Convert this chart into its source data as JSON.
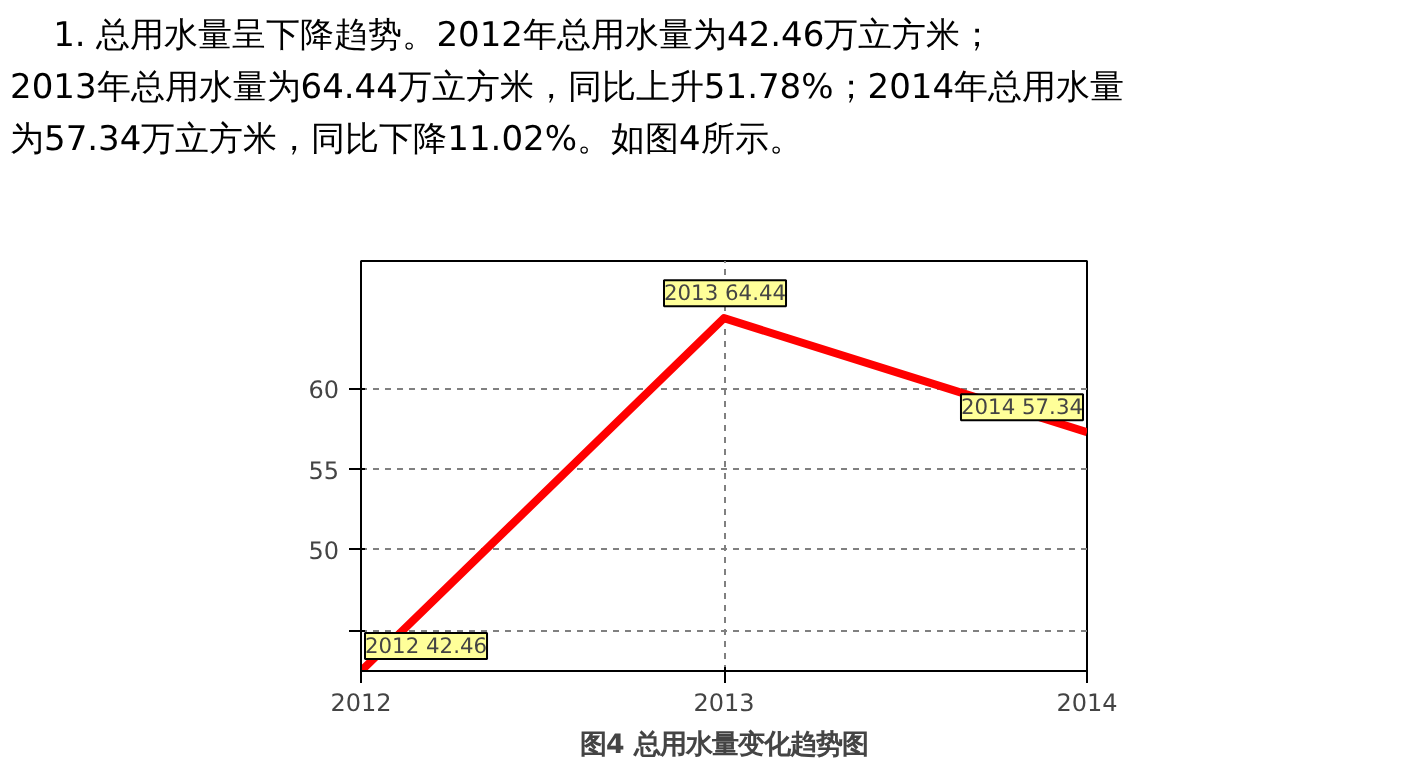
{
  "chart_data": {
    "type": "line",
    "title": "图4 总用水量变化趋势图",
    "annotations": [
      "    1. 总用水量呈下降趋势。2012年总用水量为42.46万立方米；",
      "2013年总用水量为64.44万立方米，同比上升51.78%；2014年总用水量",
      "为57.34万立方米，同比下降11.02%。如图4所示。"
    ],
    "x": [
      2012,
      2013,
      2014
    ],
    "series": [
      {
        "color": "#ff0000",
        "values": [
          42.46,
          64.44,
          57.34
        ]
      }
    ],
    "value_labels": [
      "2012 42.46",
      "2013 64.44",
      "2014 57.34"
    ],
    "xlim": [
      2012,
      2014
    ],
    "ylim": [
      42.46,
      68
    ],
    "xticks": [
      2012,
      2013,
      2014
    ],
    "yticks": [
      {
        "value": 45,
        "label": null
      },
      50,
      55,
      60
    ],
    "grid": true,
    "marker": "none",
    "line_style": "solid"
  }
}
